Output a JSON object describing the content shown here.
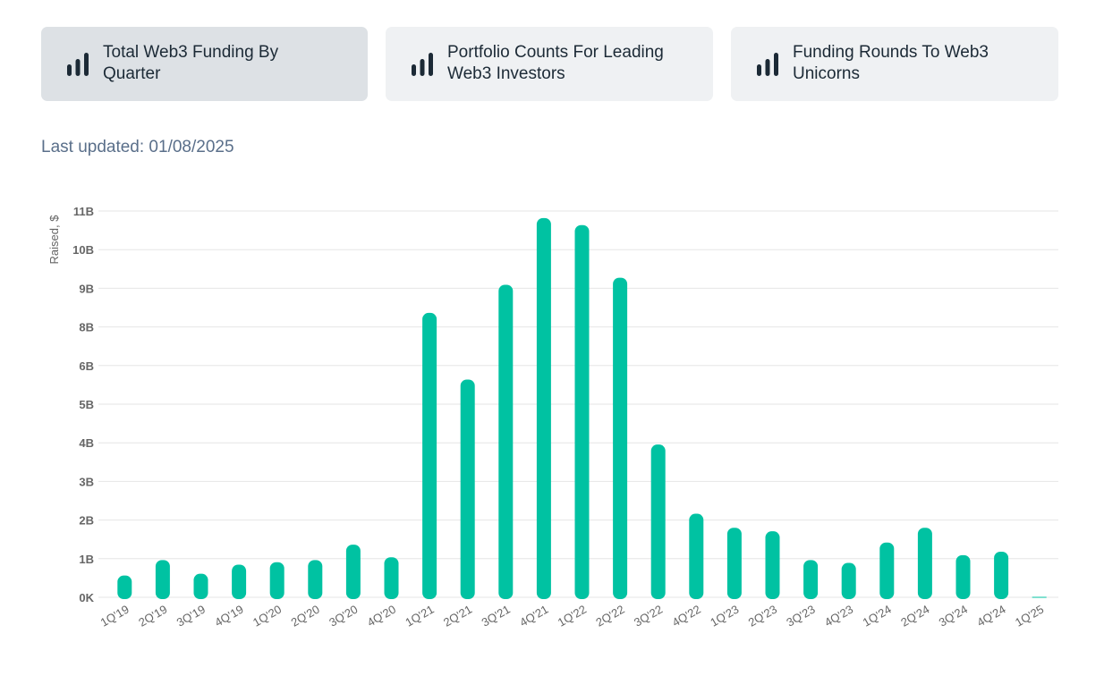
{
  "tabs": [
    {
      "label": "Total Web3 Funding By Quarter",
      "icon": "bar-chart-icon",
      "active": true
    },
    {
      "label": "Portfolio Counts For Leading Web3 Investors",
      "icon": "bar-chart-icon",
      "active": false
    },
    {
      "label": "Funding Rounds To Web3 Unicorns",
      "icon": "bar-chart-icon",
      "active": false
    }
  ],
  "last_updated": "Last updated: 01/08/2025",
  "colors": {
    "bar": "#00c2a2",
    "tab_bg": "#eff1f3",
    "tab_active_bg": "#dde1e5",
    "icon": "#1c2a36",
    "grid": "#e6e6e6",
    "axis_text": "#666666",
    "updated_text": "#5a6f8a"
  },
  "chart_data": {
    "type": "bar",
    "title": "",
    "xlabel": "",
    "ylabel": "Raised, $",
    "ytick_labels": [
      "0K",
      "1B",
      "2B",
      "3B",
      "4B",
      "5B",
      "6B",
      "8B",
      "9B",
      "10B",
      "11B"
    ],
    "ylim": [
      0,
      11000000000
    ],
    "grid": true,
    "categories": [
      "1Q'19",
      "2Q'19",
      "3Q'19",
      "4Q'19",
      "1Q'20",
      "2Q'20",
      "3Q'20",
      "4Q'20",
      "1Q'21",
      "2Q'21",
      "3Q'21",
      "4Q'21",
      "1Q'22",
      "2Q'22",
      "3Q'22",
      "4Q'22",
      "1Q'23",
      "2Q'23",
      "3Q'23",
      "4Q'23",
      "1Q'24",
      "2Q'24",
      "3Q'24",
      "4Q'24",
      "1Q'25"
    ],
    "values": [
      620000000,
      1060000000,
      670000000,
      930000000,
      1000000000,
      1060000000,
      1500000000,
      1140000000,
      8100000000,
      6200000000,
      8900000000,
      10800000000,
      10600000000,
      9100000000,
      4350000000,
      2380000000,
      1980000000,
      1880000000,
      1060000000,
      980000000,
      1560000000,
      1980000000,
      1200000000,
      1300000000,
      0
    ]
  }
}
